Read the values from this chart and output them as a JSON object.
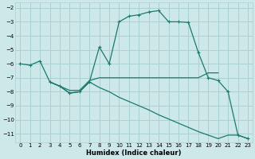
{
  "title": "",
  "xlabel": "Humidex (Indice chaleur)",
  "bg_color": "#cce8e8",
  "grid_color": "#aad0d0",
  "line_color": "#1a7a6e",
  "xlim": [
    -0.5,
    23.5
  ],
  "ylim": [
    -11.6,
    -1.6
  ],
  "yticks": [
    -11,
    -10,
    -9,
    -8,
    -7,
    -6,
    -5,
    -4,
    -3,
    -2
  ],
  "xticks": [
    0,
    1,
    2,
    3,
    4,
    5,
    6,
    7,
    8,
    9,
    10,
    11,
    12,
    13,
    14,
    15,
    16,
    17,
    18,
    19,
    20,
    21,
    22,
    23
  ],
  "line1_x": [
    0,
    1,
    2,
    3,
    4,
    5,
    6,
    7,
    8,
    9,
    10,
    11,
    12,
    13,
    14,
    15,
    16,
    17,
    18,
    19,
    20,
    21,
    22,
    23
  ],
  "line1_y": [
    -6.0,
    -6.1,
    -5.8,
    -7.3,
    -7.6,
    -8.1,
    -8.0,
    -7.3,
    -4.8,
    -6.0,
    -3.0,
    -2.6,
    -2.5,
    -2.3,
    -2.2,
    -3.0,
    -3.0,
    -3.05,
    -5.2,
    -7.0,
    -7.2,
    -8.0,
    -11.1,
    -11.35
  ],
  "line2_x": [
    3,
    4,
    5,
    6,
    7,
    8,
    9,
    10,
    11,
    12,
    13,
    14,
    15,
    16,
    17,
    18,
    19,
    20
  ],
  "line2_y": [
    -7.3,
    -7.6,
    -7.9,
    -7.9,
    -7.2,
    -7.0,
    -7.0,
    -7.0,
    -7.0,
    -7.0,
    -7.0,
    -7.0,
    -7.0,
    -7.0,
    -7.0,
    -7.0,
    -6.65,
    -6.65
  ],
  "line3_x": [
    3,
    4,
    5,
    6,
    7,
    8,
    9,
    10,
    11,
    12,
    13,
    14,
    15,
    16,
    17,
    18,
    19,
    20,
    21,
    22,
    23
  ],
  "line3_y": [
    -7.3,
    -7.6,
    -8.1,
    -8.0,
    -7.3,
    -7.7,
    -8.0,
    -8.4,
    -8.7,
    -9.0,
    -9.3,
    -9.65,
    -9.95,
    -10.25,
    -10.55,
    -10.85,
    -11.1,
    -11.35,
    -11.1,
    -11.1,
    -11.35
  ]
}
